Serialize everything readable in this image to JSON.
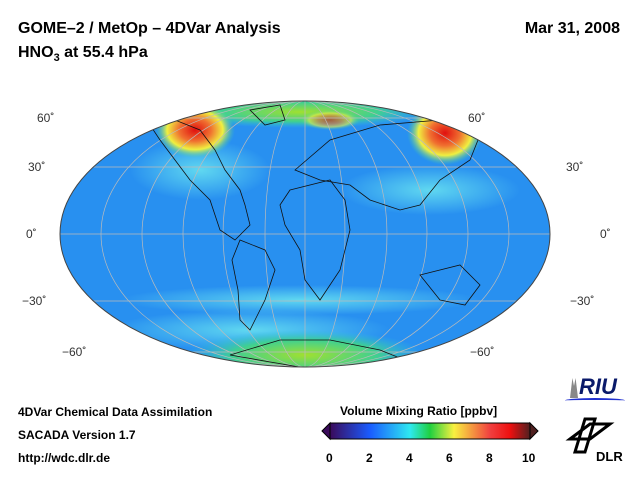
{
  "header": {
    "title_line1": "GOME–2 / MetOp – 4DVar Analysis",
    "species_prefix": "HNO",
    "species_subscript": "3",
    "species_suffix": " at 55.4 hPa",
    "date": "Mar 31, 2008"
  },
  "map": {
    "lat_labels_left": [
      "60˚",
      "30˚",
      "0˚",
      "−30˚",
      "−60˚"
    ],
    "lat_labels_right": [
      "60˚",
      "30˚",
      "0˚",
      "−30˚",
      "−60˚"
    ]
  },
  "footer": {
    "line1": "4DVar Chemical Data Assimilation",
    "line2": "SACADA Version 1.7",
    "line3": "http://wdc.dlr.de"
  },
  "colorbar": {
    "title": "Volume Mixing Ratio [ppbv]",
    "ticks": [
      "0",
      "2",
      "4",
      "6",
      "8",
      "10"
    ],
    "range": [
      0,
      10
    ],
    "colors": [
      "#3a0a5a",
      "#1a5cff",
      "#2ee8f0",
      "#20d040",
      "#f8f040",
      "#f04040",
      "#ee1010",
      "#502020"
    ]
  },
  "logos": {
    "riu": "RIU",
    "dlr": "DLR"
  }
}
